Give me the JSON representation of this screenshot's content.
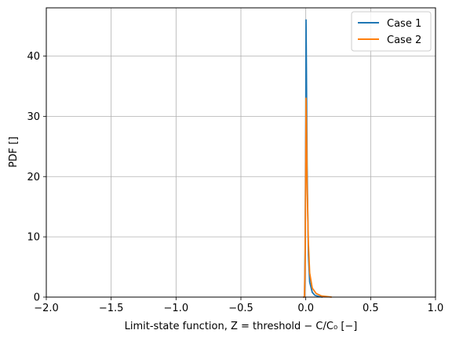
{
  "chart_data": {
    "type": "line",
    "xlabel": "Limit-state function, Z = threshold − C/C₀ [−]",
    "ylabel": "PDF []",
    "xlim": [
      -2.0,
      1.0
    ],
    "ylim": [
      0,
      48
    ],
    "x_ticks": [
      "−2.0",
      "−1.5",
      "−1.0",
      "−0.5",
      "0.0",
      "0.5",
      "1.0"
    ],
    "x_tick_values": [
      -2.0,
      -1.5,
      -1.0,
      -0.5,
      0.0,
      0.5,
      1.0
    ],
    "y_ticks": [
      "0",
      "10",
      "20",
      "30",
      "40"
    ],
    "y_tick_values": [
      0,
      10,
      20,
      30,
      40
    ],
    "grid": true,
    "legend_position": "top-right",
    "series": [
      {
        "name": "Case 1",
        "color": "#1f77b4",
        "x": [
          -0.02,
          -0.01,
          -0.005,
          0.0,
          0.002,
          0.005,
          0.01,
          0.02,
          0.03,
          0.05,
          0.07,
          0.1,
          0.13
        ],
        "y": [
          0,
          0,
          8,
          30,
          46,
          38,
          22,
          7,
          2.5,
          0.8,
          0.3,
          0.1,
          0
        ]
      },
      {
        "name": "Case 2",
        "color": "#ff7f0e",
        "x": [
          -0.02,
          -0.01,
          -0.005,
          0.0,
          0.002,
          0.005,
          0.01,
          0.02,
          0.03,
          0.05,
          0.08,
          0.12,
          0.2
        ],
        "y": [
          0,
          0,
          6,
          24,
          33,
          29,
          19,
          9,
          4,
          1.5,
          0.6,
          0.2,
          0
        ]
      }
    ]
  }
}
